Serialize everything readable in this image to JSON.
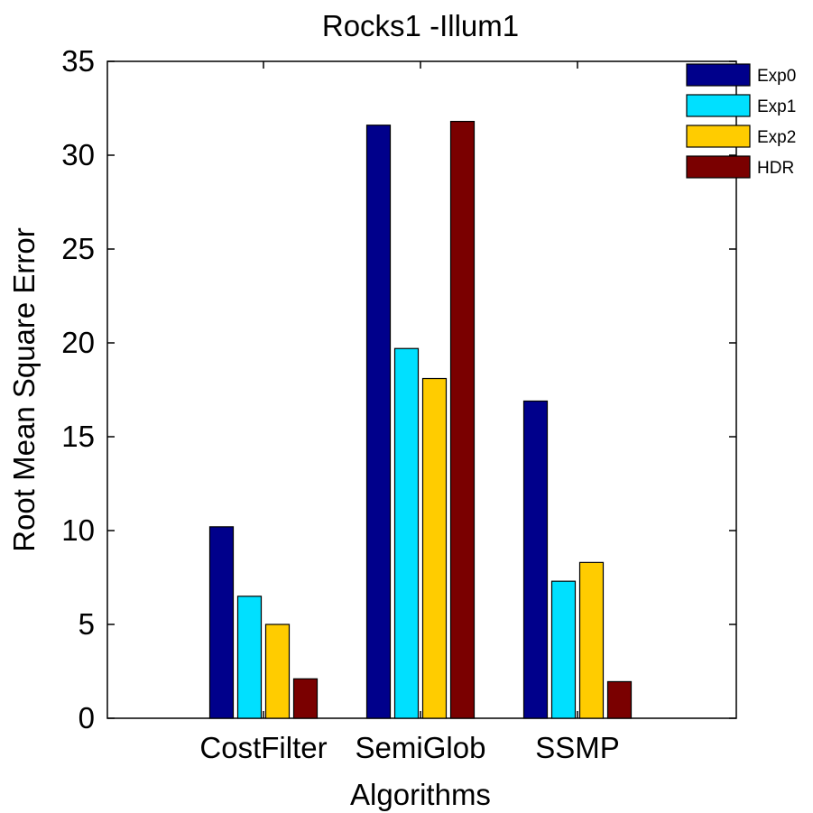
{
  "chart_data": {
    "type": "bar",
    "title": "Rocks1 -Illum1",
    "xlabel": "Algorithms",
    "ylabel": "Root Mean Square Error",
    "categories": [
      "CostFilter",
      "SemiGlob",
      "SSMP"
    ],
    "series": [
      {
        "name": "Exp0",
        "color": "#00008B",
        "values": [
          10.2,
          31.6,
          16.9
        ]
      },
      {
        "name": "Exp1",
        "color": "#00E0FF",
        "values": [
          6.5,
          19.7,
          7.3
        ]
      },
      {
        "name": "Exp2",
        "color": "#FFCC00",
        "values": [
          5.0,
          18.1,
          8.3
        ]
      },
      {
        "name": "HDR",
        "color": "#7A0000",
        "values": [
          2.1,
          31.8,
          1.95
        ]
      }
    ],
    "ylim": [
      0,
      35
    ],
    "yticks": [
      0,
      5,
      10,
      15,
      20,
      25,
      30,
      35
    ],
    "grid": false,
    "legend_position": "top-right"
  }
}
